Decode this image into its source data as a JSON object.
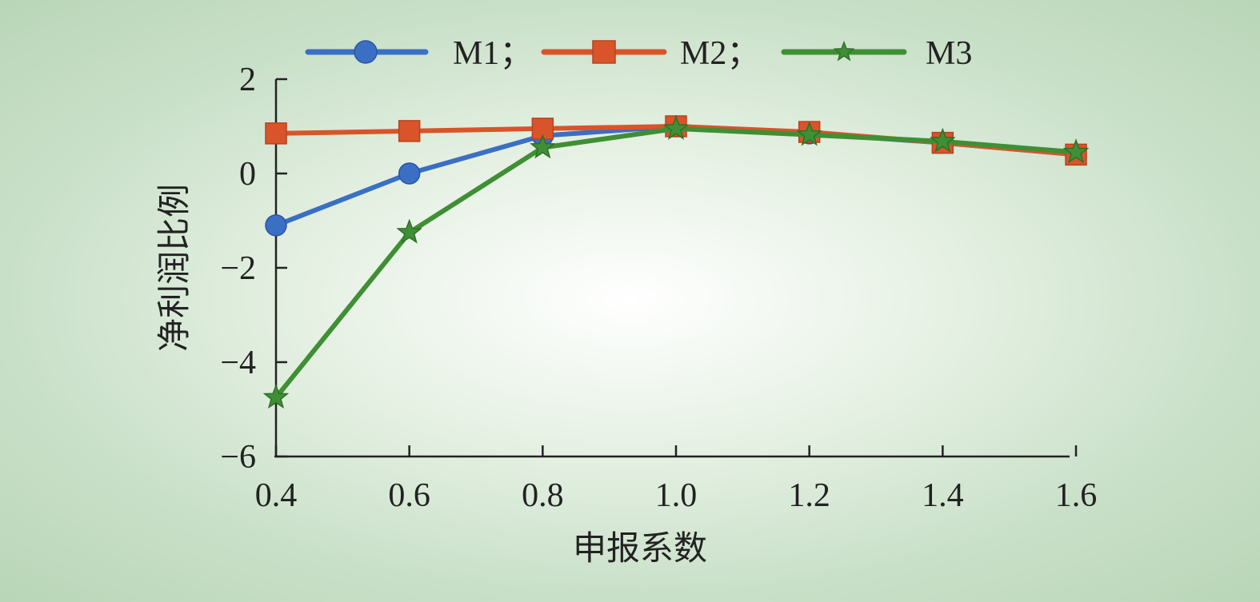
{
  "chart_data": {
    "type": "line",
    "xlabel": "申报系数",
    "ylabel": "净利润比例",
    "x": [
      0.4,
      0.6,
      0.8,
      1.0,
      1.2,
      1.4,
      1.6
    ],
    "x_tick_labels": [
      "0.4",
      "0.6",
      "0.8",
      "1.0",
      "1.2",
      "1.4",
      "1.6"
    ],
    "y_ticks": [
      2,
      0,
      -2,
      -4,
      -6
    ],
    "y_tick_labels": [
      "2",
      "0",
      "−2",
      "−4",
      "−6"
    ],
    "xlim": [
      0.4,
      1.6
    ],
    "ylim": [
      -6,
      2
    ],
    "grid": false,
    "legend_position": "top",
    "series": [
      {
        "name": "M1；",
        "color": "#3a6fc4",
        "marker": "circle",
        "values": [
          -1.1,
          0.0,
          0.8,
          1.0,
          0.85,
          0.65,
          0.4
        ]
      },
      {
        "name": "M2；",
        "color": "#d9542a",
        "marker": "square",
        "values": [
          0.85,
          0.9,
          0.95,
          1.0,
          0.88,
          0.65,
          0.4
        ]
      },
      {
        "name": "M3",
        "color": "#3f8f35",
        "marker": "star",
        "values": [
          -4.75,
          -1.25,
          0.55,
          0.95,
          0.82,
          0.68,
          0.45
        ]
      }
    ]
  }
}
